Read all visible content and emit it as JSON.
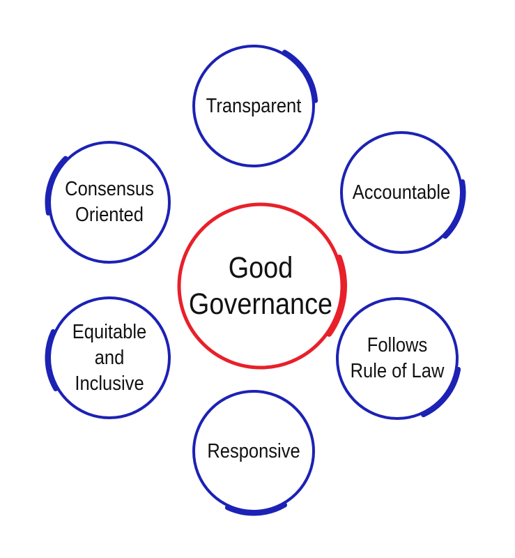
{
  "center": {
    "label": "Good\nGovernance",
    "ring_color": "#e8202a"
  },
  "ring_color": "#1c22b4",
  "nodes": [
    {
      "id": "transparent",
      "label": "Transparent"
    },
    {
      "id": "accountable",
      "label": "Accountable"
    },
    {
      "id": "follows-rule-of-law",
      "label": "Follows\nRule of Law"
    },
    {
      "id": "responsive",
      "label": "Responsive"
    },
    {
      "id": "equitable-and-inclusive",
      "label": "Equitable\nand\nInclusive"
    },
    {
      "id": "consensus-oriented",
      "label": "Consensus\nOriented"
    }
  ]
}
